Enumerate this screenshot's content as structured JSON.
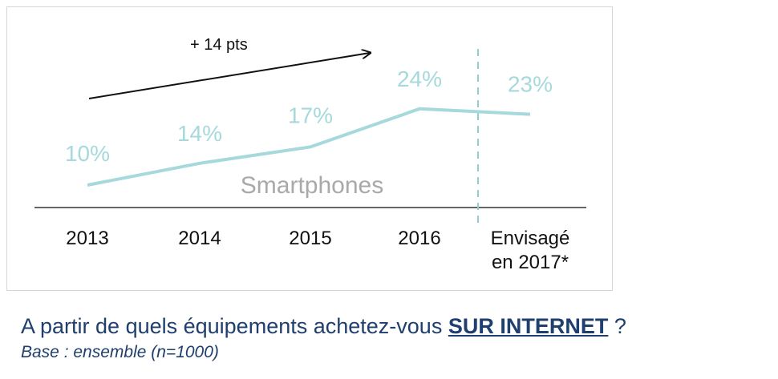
{
  "chart_data": {
    "type": "line",
    "categories": [
      "2013",
      "2014",
      "2015",
      "2016",
      "Envisagé en 2017*"
    ],
    "category_lines": [
      [
        "2013"
      ],
      [
        "2014"
      ],
      [
        "2015"
      ],
      [
        "2016"
      ],
      [
        "Envisagé",
        "en 2017*"
      ]
    ],
    "series": [
      {
        "name": "Smartphones",
        "values": [
          10,
          14,
          17,
          24,
          23
        ],
        "unit": "%"
      }
    ],
    "data_labels": [
      "10%",
      "14%",
      "17%",
      "24%",
      "23%"
    ],
    "annotation": "+ 14 pts",
    "series_label": "Smartphones",
    "title": "",
    "xlabel": "",
    "ylabel": "",
    "grid": false,
    "colors": {
      "line": "#a6d9dc",
      "labels": "#a6d9dc",
      "divider": "#8fcfd3",
      "arrow": "#111111",
      "series_text": "#a9a9a9"
    }
  },
  "question": {
    "prefix": "A partir de quels équipements achetez-vous ",
    "emphasis": "SUR INTERNET",
    "suffix": " ?"
  },
  "base_note": "Base : ensemble (n=1000)"
}
